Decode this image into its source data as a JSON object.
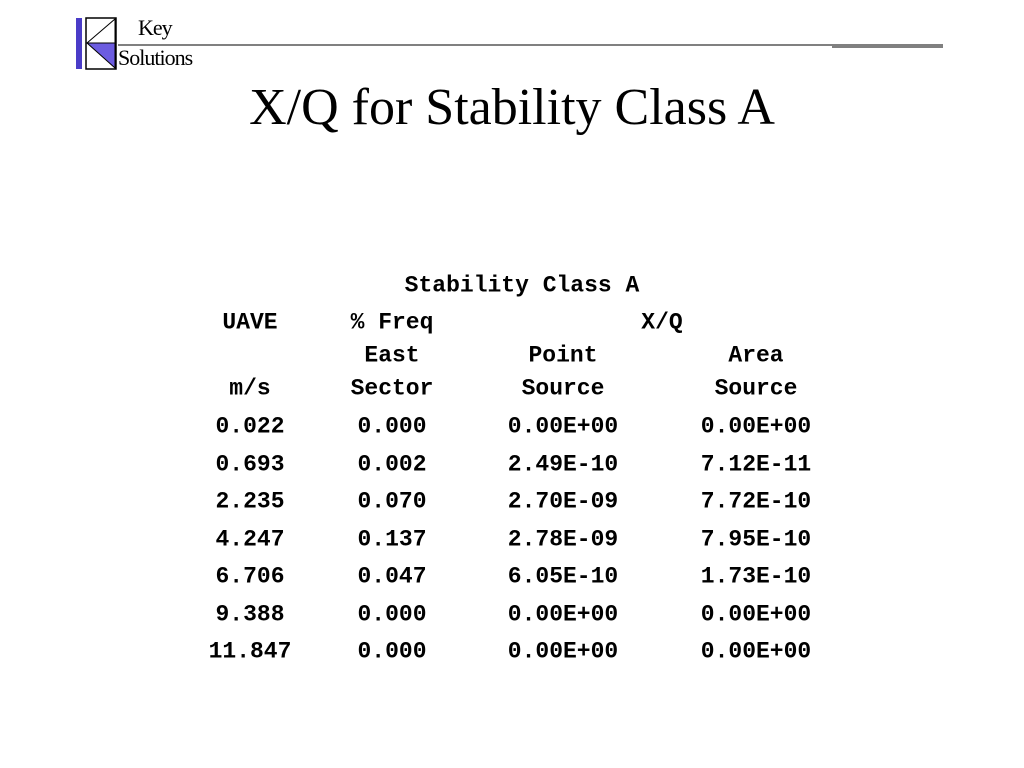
{
  "logo": {
    "line1": "Key",
    "line2": "Solutions"
  },
  "title": "X/Q for Stability Class A",
  "table": {
    "caption": "Stability Class A",
    "group_header": "X/Q",
    "columns": [
      {
        "top": "UAVE",
        "bottom": "m/s"
      },
      {
        "top": "% Freq",
        "middle": "East",
        "bottom": "Sector"
      },
      {
        "middle": "Point",
        "bottom": "Source"
      },
      {
        "middle": "Area",
        "bottom": "Source"
      }
    ],
    "rows": [
      [
        "0.022",
        "0.000",
        "0.00E+00",
        "0.00E+00"
      ],
      [
        "0.693",
        "0.002",
        "2.49E-10",
        "7.12E-11"
      ],
      [
        "2.235",
        "0.070",
        "2.70E-09",
        "7.72E-10"
      ],
      [
        "4.247",
        "0.137",
        "2.78E-09",
        "7.95E-10"
      ],
      [
        "6.706",
        "0.047",
        "6.05E-10",
        "1.73E-10"
      ],
      [
        "9.388",
        "0.000",
        "0.00E+00",
        "0.00E+00"
      ],
      [
        "11.847",
        "0.000",
        "0.00E+00",
        "0.00E+00"
      ]
    ]
  }
}
